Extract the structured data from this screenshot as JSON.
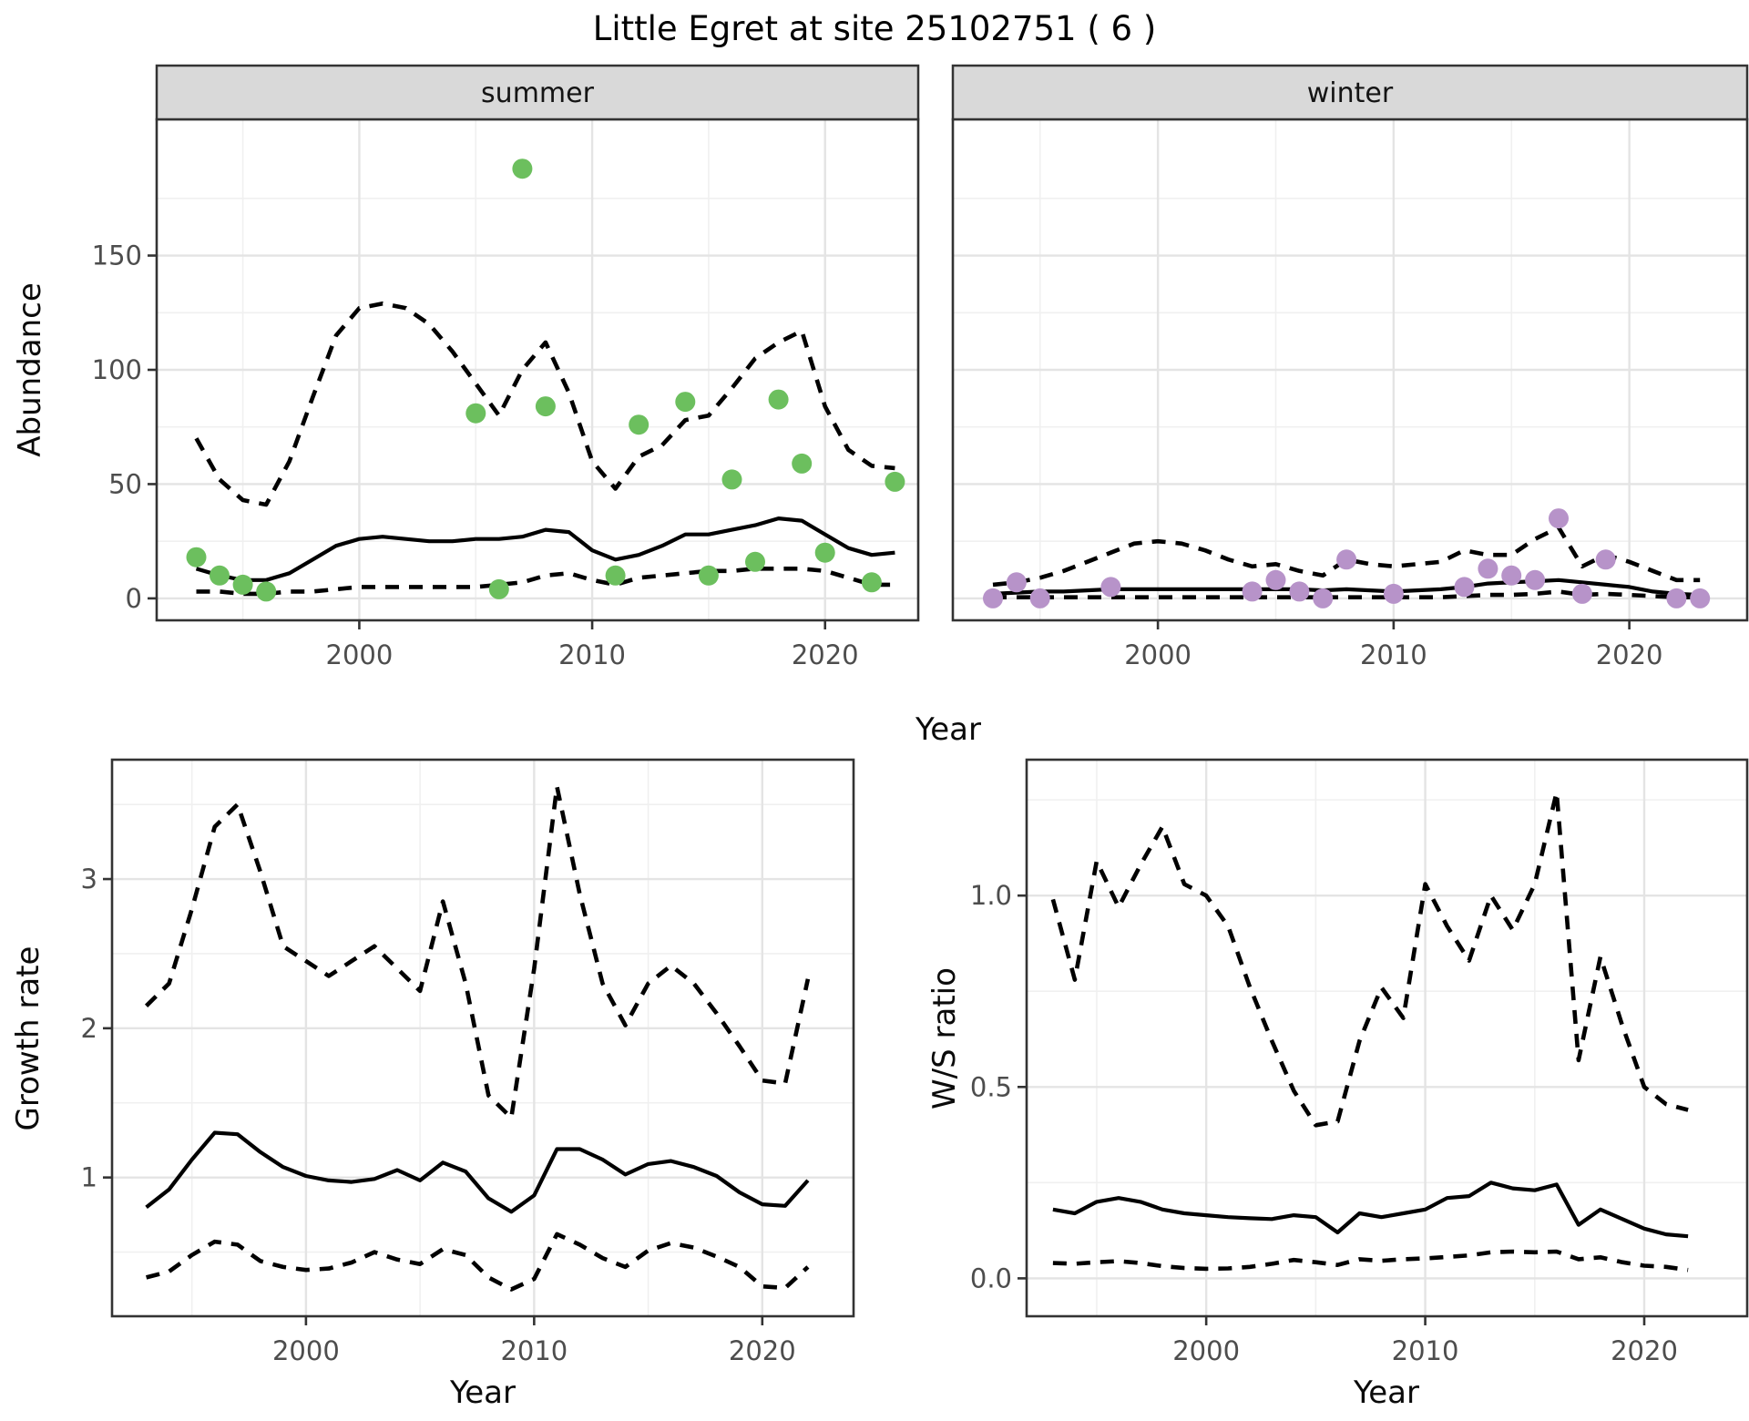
{
  "title": "Little Egret at site 25102751 ( 6 )",
  "facets": [
    "summer",
    "winter"
  ],
  "axes": {
    "x_label": "Year",
    "y_label_abundance": "Abundance",
    "y_label_growth": "Growth rate",
    "y_label_ws": "W/S ratio"
  },
  "colors": {
    "summer_point": "#6CBF5E",
    "winter_point": "#B793C9",
    "line": "#000000",
    "grid_major": "#E4E4E4",
    "grid_minor": "#F0F0F0",
    "panel_border": "#333333",
    "strip_bg": "#D9D9D9",
    "tick_text": "#4D4D4D"
  },
  "chart_data": [
    {
      "id": "abundance_summer",
      "type": "scatter",
      "facet": "summer",
      "ylabel": "Abundance",
      "xlabel": "Year",
      "xlim": [
        1991.3,
        2024.0
      ],
      "ylim": [
        -9.6,
        209.6
      ],
      "x_ticks": [
        2000,
        2010,
        2020
      ],
      "x_tick_labels": [
        "2000",
        "2010",
        "2020"
      ],
      "x_minor": [
        1995,
        2005,
        2015
      ],
      "y_ticks": [
        0,
        50,
        100,
        150
      ],
      "y_tick_labels": [
        "0",
        "50",
        "100",
        "150"
      ],
      "y_minor": [
        25,
        75,
        125,
        175
      ],
      "show_y_labels": true,
      "points": {
        "years": [
          1993,
          1994,
          1995,
          1996,
          2005,
          2006,
          2007,
          2008,
          2011,
          2012,
          2014,
          2015,
          2016,
          2017,
          2018,
          2019,
          2020,
          2022,
          2023
        ],
        "values": [
          18,
          10,
          6,
          3,
          81,
          4,
          188,
          84,
          10,
          76,
          86,
          10,
          52,
          16,
          87,
          59,
          20,
          7,
          51
        ]
      },
      "mean_line": {
        "years": [
          1993,
          1994,
          1995,
          1996,
          1997,
          1998,
          1999,
          2000,
          2001,
          2002,
          2003,
          2004,
          2005,
          2006,
          2007,
          2008,
          2009,
          2010,
          2011,
          2012,
          2013,
          2014,
          2015,
          2016,
          2017,
          2018,
          2019,
          2020,
          2021,
          2022,
          2023
        ],
        "values": [
          13,
          10,
          8,
          8,
          11,
          17,
          23,
          26,
          27,
          26,
          25,
          25,
          26,
          26,
          27,
          30,
          29,
          21,
          17,
          19,
          23,
          28,
          28,
          30,
          32,
          35,
          34,
          28,
          22,
          19,
          20
        ]
      },
      "upper_ci": {
        "years": [
          1993,
          1994,
          1995,
          1996,
          1997,
          1998,
          1999,
          2000,
          2001,
          2002,
          2003,
          2004,
          2005,
          2006,
          2007,
          2008,
          2009,
          2010,
          2011,
          2012,
          2013,
          2014,
          2015,
          2016,
          2017,
          2018,
          2019,
          2020,
          2021,
          2022,
          2023
        ],
        "values": [
          70,
          52,
          43,
          41,
          60,
          88,
          115,
          127,
          129,
          127,
          120,
          108,
          94,
          80,
          100,
          112,
          90,
          60,
          48,
          62,
          67,
          78,
          80,
          92,
          105,
          112,
          117,
          84,
          65,
          58,
          57
        ]
      },
      "lower_ci": {
        "years": [
          1993,
          1994,
          1995,
          1996,
          1997,
          1998,
          1999,
          2000,
          2001,
          2002,
          2003,
          2004,
          2005,
          2006,
          2007,
          2008,
          2009,
          2010,
          2011,
          2012,
          2013,
          2014,
          2015,
          2016,
          2017,
          2018,
          2019,
          2020,
          2021,
          2022,
          2023
        ],
        "values": [
          3,
          3,
          2,
          2,
          3,
          3,
          4,
          5,
          5,
          5,
          5,
          5,
          5,
          6,
          7,
          10,
          11,
          8,
          6,
          9,
          10,
          11,
          12,
          12,
          13,
          13,
          13,
          12,
          9,
          6,
          6
        ]
      }
    },
    {
      "id": "abundance_winter",
      "type": "scatter",
      "facet": "winter",
      "ylabel": "Abundance",
      "xlabel": "Year",
      "xlim": [
        1991.3,
        2025.0
      ],
      "ylim": [
        -9.6,
        209.6
      ],
      "x_ticks": [
        2000,
        2010,
        2020
      ],
      "x_tick_labels": [
        "2000",
        "2010",
        "2020"
      ],
      "x_minor": [
        1995,
        2005,
        2015
      ],
      "y_ticks": [
        0,
        50,
        100,
        150
      ],
      "y_tick_labels": [
        "0",
        "50",
        "100",
        "150"
      ],
      "y_minor": [
        25,
        75,
        125,
        175
      ],
      "show_y_labels": false,
      "points": {
        "years": [
          1993,
          1994,
          1995,
          1998,
          2004,
          2005,
          2006,
          2007,
          2008,
          2010,
          2013,
          2014,
          2015,
          2016,
          2017,
          2018,
          2019,
          2022,
          2023
        ],
        "values": [
          0,
          7,
          0,
          5,
          3,
          8,
          3,
          0,
          17,
          2,
          5,
          13,
          10,
          8,
          35,
          2,
          17,
          0,
          0
        ]
      },
      "mean_line": {
        "years": [
          1993,
          1994,
          1995,
          1996,
          1997,
          1998,
          1999,
          2000,
          2001,
          2002,
          2003,
          2004,
          2005,
          2006,
          2007,
          2008,
          2009,
          2010,
          2011,
          2012,
          2013,
          2014,
          2015,
          2016,
          2017,
          2018,
          2019,
          2020,
          2021,
          2022,
          2023
        ],
        "values": [
          2,
          2.5,
          3,
          3,
          3.5,
          4,
          4,
          4,
          4,
          4,
          4,
          4,
          4,
          4,
          3.5,
          4,
          3.5,
          3,
          3.5,
          4,
          5,
          6.5,
          7,
          7.5,
          8,
          7,
          6,
          5,
          3,
          2,
          1.5
        ]
      },
      "upper_ci": {
        "years": [
          1993,
          1994,
          1995,
          1996,
          1997,
          1998,
          1999,
          2000,
          2001,
          2002,
          2003,
          2004,
          2005,
          2006,
          2007,
          2008,
          2009,
          2010,
          2011,
          2012,
          2013,
          2014,
          2015,
          2016,
          2017,
          2018,
          2019,
          2020,
          2021,
          2022,
          2023
        ],
        "values": [
          6,
          7,
          9,
          12,
          16,
          20,
          24,
          25,
          24,
          21,
          17,
          14,
          15,
          12,
          10,
          17,
          15,
          14,
          15,
          16,
          21,
          19,
          19,
          26,
          31,
          14,
          19,
          16,
          12,
          8,
          8
        ]
      },
      "lower_ci": {
        "years": [
          1993,
          1994,
          1995,
          1996,
          1997,
          1998,
          1999,
          2000,
          2001,
          2002,
          2003,
          2004,
          2005,
          2006,
          2007,
          2008,
          2009,
          2010,
          2011,
          2012,
          2013,
          2014,
          2015,
          2016,
          2017,
          2018,
          2019,
          2020,
          2021,
          2022,
          2023
        ],
        "values": [
          0.5,
          0.5,
          0.5,
          0.5,
          0.5,
          0.5,
          0.5,
          0.5,
          0.5,
          0.5,
          0.5,
          0.5,
          0.5,
          0.5,
          0.5,
          0.5,
          0.5,
          0.5,
          0.5,
          0.5,
          1,
          1.5,
          1.5,
          2,
          3,
          1.5,
          2,
          1.5,
          1,
          0.5,
          0.5
        ]
      }
    },
    {
      "id": "growth_rate",
      "type": "line",
      "facet": null,
      "ylabel": "Growth rate",
      "xlabel": "Year",
      "xlim": [
        1991.5,
        2024.0
      ],
      "ylim": [
        0.07,
        3.8
      ],
      "x_ticks": [
        2000,
        2010,
        2020
      ],
      "x_tick_labels": [
        "2000",
        "2010",
        "2020"
      ],
      "x_minor": [
        1995,
        2005,
        2015
      ],
      "y_ticks": [
        1,
        2,
        3
      ],
      "y_tick_labels": [
        "1",
        "2",
        "3"
      ],
      "y_minor": [
        0.5,
        1.5,
        2.5,
        3.5
      ],
      "show_y_labels": true,
      "points": null,
      "mean_line": {
        "years": [
          1993,
          1994,
          1995,
          1996,
          1997,
          1998,
          1999,
          2000,
          2001,
          2002,
          2003,
          2004,
          2005,
          2006,
          2007,
          2008,
          2009,
          2010,
          2011,
          2012,
          2013,
          2014,
          2015,
          2016,
          2017,
          2018,
          2019,
          2020,
          2021,
          2022
        ],
        "values": [
          0.8,
          0.92,
          1.12,
          1.3,
          1.29,
          1.17,
          1.07,
          1.01,
          0.98,
          0.97,
          0.99,
          1.05,
          0.98,
          1.1,
          1.04,
          0.86,
          0.77,
          0.88,
          1.19,
          1.19,
          1.12,
          1.02,
          1.09,
          1.11,
          1.07,
          1.01,
          0.9,
          0.82,
          0.81,
          0.98
        ]
      },
      "upper_ci": {
        "years": [
          1993,
          1994,
          1995,
          1996,
          1997,
          1998,
          1999,
          2000,
          2001,
          2002,
          2003,
          2004,
          2005,
          2006,
          2007,
          2008,
          2009,
          2010,
          2011,
          2012,
          2013,
          2014,
          2015,
          2016,
          2017,
          2018,
          2019,
          2020,
          2021,
          2022
        ],
        "values": [
          2.15,
          2.3,
          2.8,
          3.35,
          3.5,
          3.05,
          2.55,
          2.45,
          2.35,
          2.45,
          2.55,
          2.4,
          2.25,
          2.85,
          2.3,
          1.55,
          1.4,
          2.4,
          3.62,
          2.9,
          2.3,
          2.02,
          2.3,
          2.42,
          2.3,
          2.1,
          1.88,
          1.65,
          1.63,
          2.33
        ]
      },
      "lower_ci": {
        "years": [
          1993,
          1994,
          1995,
          1996,
          1997,
          1998,
          1999,
          2000,
          2001,
          2002,
          2003,
          2004,
          2005,
          2006,
          2007,
          2008,
          2009,
          2010,
          2011,
          2012,
          2013,
          2014,
          2015,
          2016,
          2017,
          2018,
          2019,
          2020,
          2021,
          2022
        ],
        "values": [
          0.33,
          0.37,
          0.48,
          0.57,
          0.55,
          0.44,
          0.4,
          0.38,
          0.39,
          0.43,
          0.5,
          0.45,
          0.42,
          0.52,
          0.48,
          0.33,
          0.25,
          0.32,
          0.62,
          0.55,
          0.46,
          0.4,
          0.51,
          0.56,
          0.53,
          0.47,
          0.4,
          0.27,
          0.26,
          0.4
        ]
      }
    },
    {
      "id": "ws_ratio",
      "type": "line",
      "facet": null,
      "ylabel": "W/S ratio",
      "xlabel": "Year",
      "xlim": [
        1991.8,
        2024.7
      ],
      "ylim": [
        -0.099,
        1.355
      ],
      "x_ticks": [
        2000,
        2010,
        2020
      ],
      "x_tick_labels": [
        "2000",
        "2010",
        "2020"
      ],
      "x_minor": [
        1995,
        2005,
        2015
      ],
      "y_ticks": [
        0.0,
        0.5,
        1.0
      ],
      "y_tick_labels": [
        "0.0",
        "0.5",
        "1.0"
      ],
      "y_minor": [
        0.25,
        0.75,
        1.25
      ],
      "show_y_labels": true,
      "points": null,
      "mean_line": {
        "years": [
          1993,
          1994,
          1995,
          1996,
          1997,
          1998,
          1999,
          2000,
          2001,
          2002,
          2003,
          2004,
          2005,
          2006,
          2007,
          2008,
          2009,
          2010,
          2011,
          2012,
          2013,
          2014,
          2015,
          2016,
          2017,
          2018,
          2019,
          2020,
          2021,
          2022
        ],
        "values": [
          0.18,
          0.17,
          0.2,
          0.21,
          0.2,
          0.18,
          0.17,
          0.165,
          0.16,
          0.157,
          0.155,
          0.165,
          0.16,
          0.12,
          0.17,
          0.16,
          0.17,
          0.18,
          0.21,
          0.215,
          0.25,
          0.235,
          0.23,
          0.245,
          0.14,
          0.18,
          0.155,
          0.13,
          0.115,
          0.11
        ]
      },
      "upper_ci": {
        "years": [
          1993,
          1994,
          1995,
          1996,
          1997,
          1998,
          1999,
          2000,
          2001,
          2002,
          2003,
          2004,
          2005,
          2006,
          2007,
          2008,
          2009,
          2010,
          2011,
          2012,
          2013,
          2014,
          2015,
          2016,
          2017,
          2018,
          2019,
          2020,
          2021,
          2022
        ],
        "values": [
          0.99,
          0.78,
          1.09,
          0.97,
          1.08,
          1.18,
          1.03,
          1.0,
          0.92,
          0.76,
          0.62,
          0.49,
          0.4,
          0.41,
          0.62,
          0.76,
          0.68,
          1.03,
          0.92,
          0.83,
          1.0,
          0.91,
          1.03,
          1.27,
          0.57,
          0.84,
          0.66,
          0.5,
          0.455,
          0.44
        ]
      },
      "lower_ci": {
        "years": [
          1993,
          1994,
          1995,
          1996,
          1997,
          1998,
          1999,
          2000,
          2001,
          2002,
          2003,
          2004,
          2005,
          2006,
          2007,
          2008,
          2009,
          2010,
          2011,
          2012,
          2013,
          2014,
          2015,
          2016,
          2017,
          2018,
          2019,
          2020,
          2021,
          2022
        ],
        "values": [
          0.04,
          0.038,
          0.042,
          0.045,
          0.04,
          0.032,
          0.027,
          0.025,
          0.026,
          0.03,
          0.038,
          0.048,
          0.042,
          0.035,
          0.05,
          0.046,
          0.05,
          0.052,
          0.056,
          0.06,
          0.068,
          0.07,
          0.068,
          0.07,
          0.05,
          0.055,
          0.042,
          0.033,
          0.03,
          0.022
        ]
      }
    }
  ]
}
